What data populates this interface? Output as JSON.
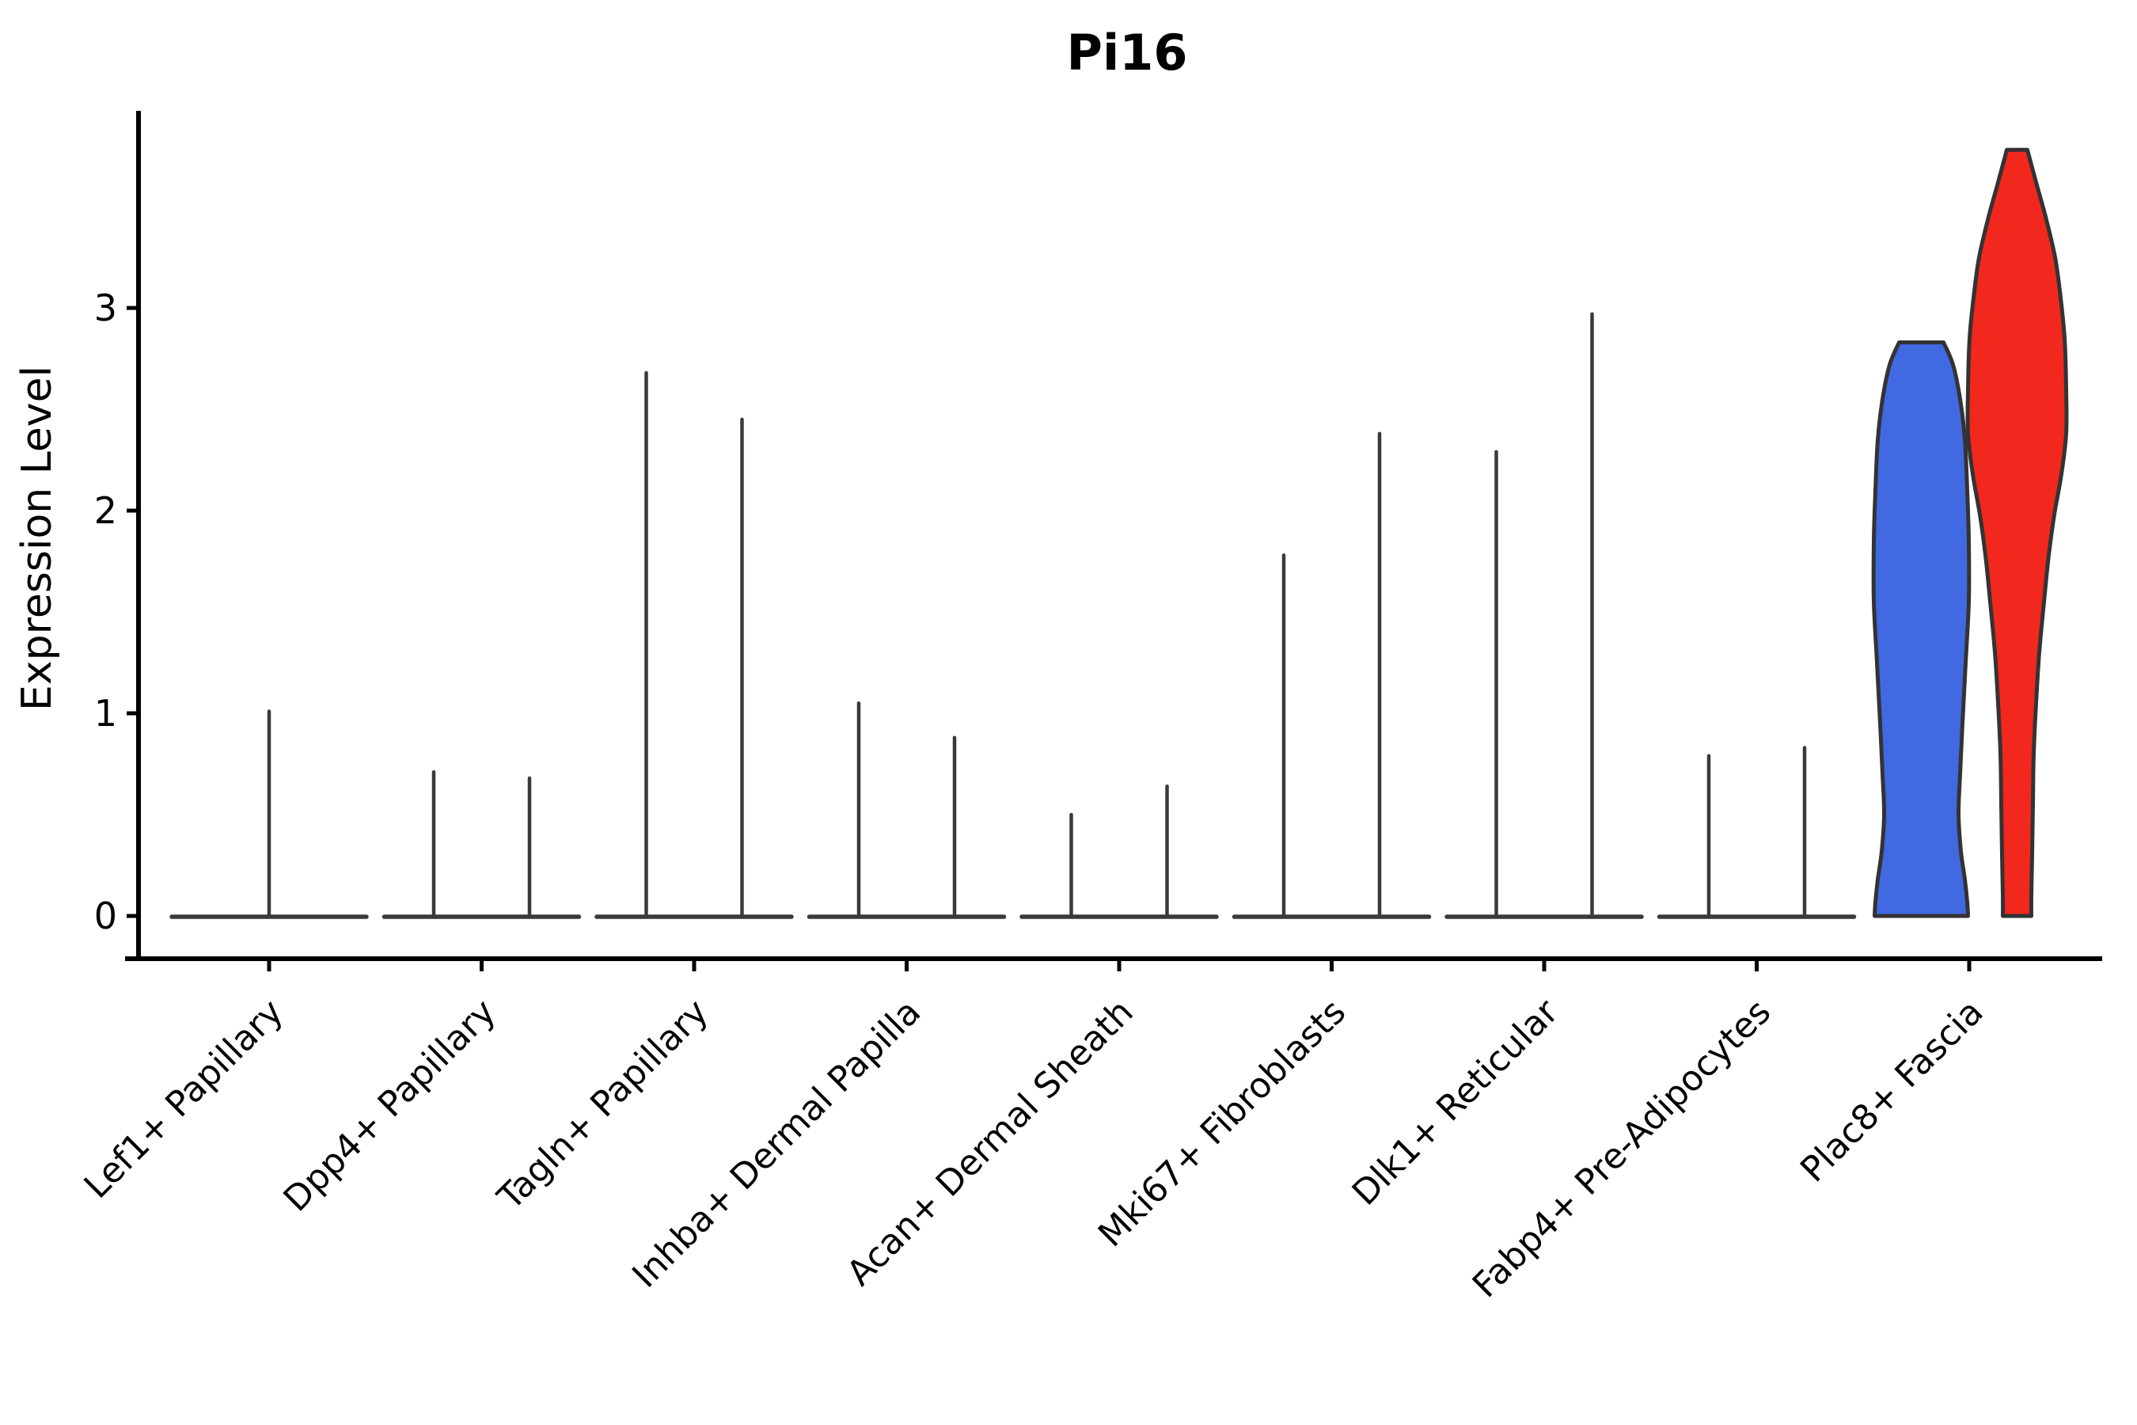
{
  "title": "Pi16",
  "y_axis": {
    "label": "Expression Level",
    "tick_labels": [
      "0",
      "1",
      "2",
      "3"
    ]
  },
  "x_axis": {
    "tick_labels": [
      "Lef1+ Papillary",
      "Dpp4+ Papillary",
      "Tagln+ Papillary",
      "Inhba+ Dermal Papilla",
      "Acan+ Dermal Sheath",
      "Mki67+ Fibroblasts",
      "Dlk1+ Reticular",
      "Fabp4+ Pre-Adipocytes",
      "Plac8+ Fascia"
    ]
  },
  "chart_data": {
    "type": "violin",
    "title": "Pi16",
    "xlabel": "",
    "ylabel": "Expression Level",
    "ylim": [
      0,
      3.96
    ],
    "yticks": [
      0,
      1,
      2,
      3
    ],
    "grid": false,
    "legend": null,
    "categories": [
      "Lef1+ Papillary",
      "Dpp4+ Papillary",
      "Tagln+ Papillary",
      "Inhba+ Dermal Papilla",
      "Acan+ Dermal Sheath",
      "Mki67+ Fibroblasts",
      "Dlk1+ Reticular",
      "Fabp4+ Pre-Adipocytes",
      "Plac8+ Fascia"
    ],
    "split_groups": [
      {
        "name": "group-blue",
        "color": "#4169E1"
      },
      {
        "name": "group-red",
        "color": "#F2271D"
      }
    ],
    "violins": [
      {
        "category": "Lef1+ Papillary",
        "spikes": [
          {
            "position": "center",
            "max_expression": 1.01
          }
        ],
        "bodies": []
      },
      {
        "category": "Dpp4+ Papillary",
        "spikes": [
          {
            "position": "left",
            "max_expression": 0.71
          },
          {
            "position": "right",
            "max_expression": 0.68
          }
        ],
        "bodies": []
      },
      {
        "category": "Tagln+ Papillary",
        "spikes": [
          {
            "position": "left",
            "max_expression": 2.68
          },
          {
            "position": "right",
            "max_expression": 2.45
          }
        ],
        "bodies": []
      },
      {
        "category": "Inhba+ Dermal Papilla",
        "spikes": [
          {
            "position": "left",
            "max_expression": 1.05
          },
          {
            "position": "right",
            "max_expression": 0.88
          }
        ],
        "bodies": []
      },
      {
        "category": "Acan+ Dermal Sheath",
        "spikes": [
          {
            "position": "left",
            "max_expression": 0.5
          },
          {
            "position": "right",
            "max_expression": 0.64
          }
        ],
        "bodies": []
      },
      {
        "category": "Mki67+ Fibroblasts",
        "spikes": [
          {
            "position": "left",
            "max_expression": 1.78
          },
          {
            "position": "right",
            "max_expression": 2.38
          }
        ],
        "bodies": []
      },
      {
        "category": "Dlk1+ Reticular",
        "spikes": [
          {
            "position": "left",
            "max_expression": 2.29
          },
          {
            "position": "right",
            "max_expression": 2.97
          }
        ],
        "bodies": []
      },
      {
        "category": "Fabp4+ Pre-Adipocytes",
        "spikes": [
          {
            "position": "left",
            "max_expression": 0.79
          },
          {
            "position": "right",
            "max_expression": 0.83
          }
        ],
        "bodies": []
      },
      {
        "category": "Plac8+ Fascia",
        "spikes": [],
        "bodies": [
          {
            "group": "group-blue",
            "position": "left",
            "max_expression": 2.83,
            "profile_key": "blue"
          },
          {
            "group": "group-red",
            "position": "right",
            "max_expression": 3.78,
            "profile_key": "red"
          }
        ]
      }
    ],
    "violin_profiles": {
      "blue": [
        [
          2.83,
          28
        ],
        [
          2.72,
          40
        ],
        [
          2.55,
          49
        ],
        [
          2.35,
          55
        ],
        [
          2.1,
          58
        ],
        [
          1.85,
          60
        ],
        [
          1.55,
          60
        ],
        [
          1.25,
          56
        ],
        [
          0.95,
          52
        ],
        [
          0.7,
          49
        ],
        [
          0.5,
          47
        ],
        [
          0.32,
          50
        ],
        [
          0.18,
          55
        ],
        [
          0.07,
          58
        ],
        [
          0.0,
          59
        ]
      ],
      "red": [
        [
          3.78,
          13
        ],
        [
          3.62,
          24
        ],
        [
          3.45,
          36
        ],
        [
          3.25,
          48
        ],
        [
          3.05,
          55
        ],
        [
          2.85,
          60
        ],
        [
          2.6,
          62
        ],
        [
          2.38,
          62
        ],
        [
          2.18,
          56
        ],
        [
          1.98,
          47
        ],
        [
          1.78,
          40
        ],
        [
          1.55,
          34
        ],
        [
          1.3,
          28
        ],
        [
          1.05,
          24
        ],
        [
          0.8,
          21
        ],
        [
          0.55,
          20
        ],
        [
          0.3,
          19
        ],
        [
          0.1,
          18
        ],
        [
          0.0,
          18
        ]
      ]
    },
    "colors": {
      "blue": "#4169E1",
      "red": "#F2271D",
      "spike": "#3A3A3A",
      "outline": "#333333",
      "axis": "#000000",
      "background": "#FFFFFF"
    }
  }
}
